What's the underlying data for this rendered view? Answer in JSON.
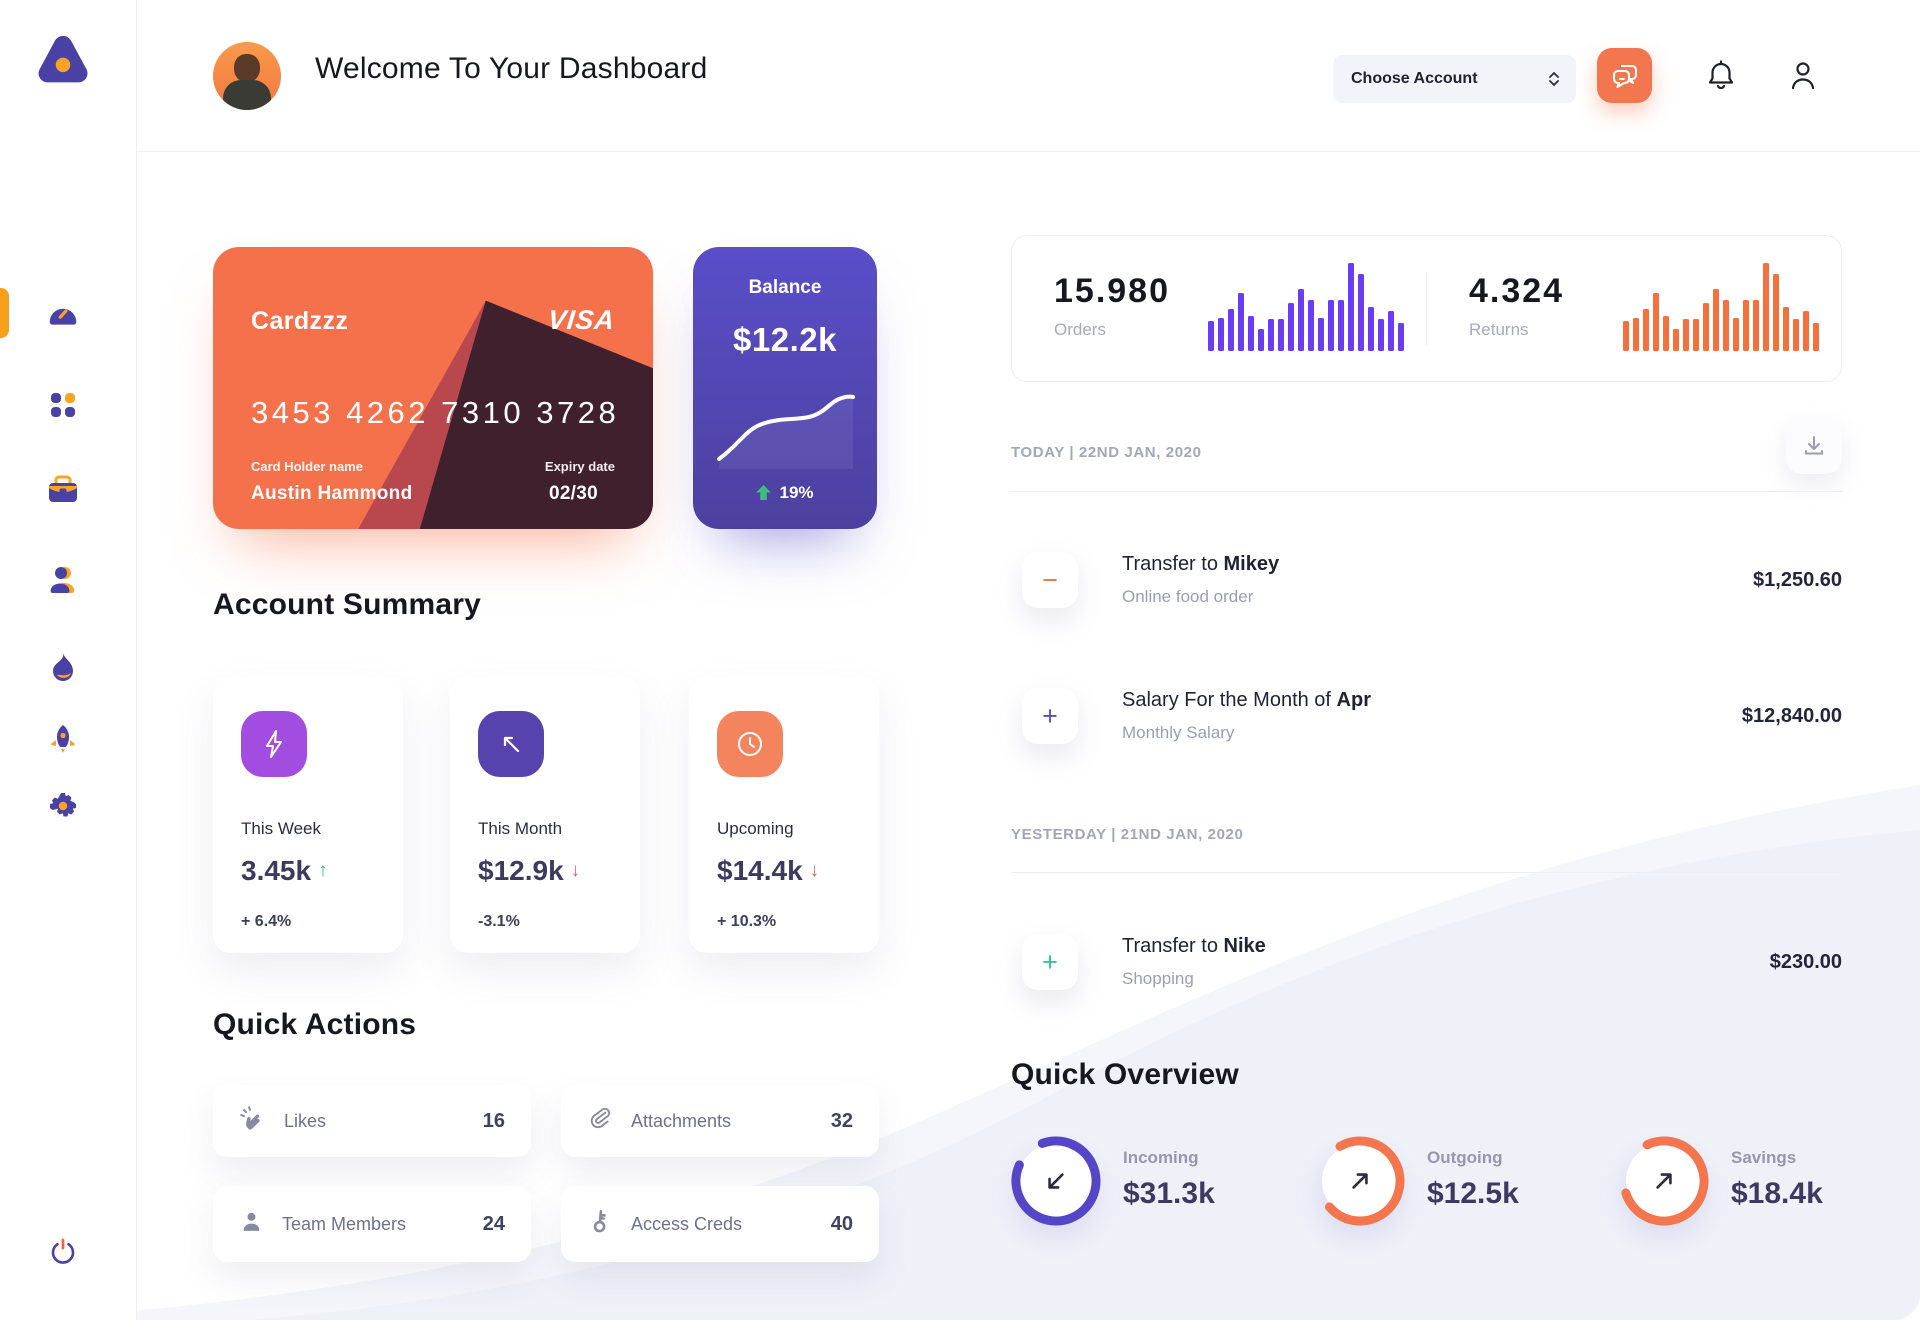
{
  "window": {
    "title": "Welcome To Your Dashboard"
  },
  "header": {
    "account_select_label": "Choose Account",
    "icons": {
      "chat": "chat-bubbles-icon",
      "notifications": "bell-icon",
      "profile": "user-icon"
    }
  },
  "sidebar": {
    "items": [
      {
        "id": "dashboard",
        "icon": "speedometer-icon",
        "active": true
      },
      {
        "id": "apps",
        "icon": "grid-icon",
        "active": false
      },
      {
        "id": "work",
        "icon": "briefcase-icon",
        "active": false
      },
      {
        "id": "users",
        "icon": "person-icon",
        "active": false
      },
      {
        "id": "trending",
        "icon": "flame-icon",
        "active": false
      },
      {
        "id": "boost",
        "icon": "rocket-icon",
        "active": false
      },
      {
        "id": "settings",
        "icon": "gear-icon",
        "active": false
      },
      {
        "id": "logout",
        "icon": "power-icon",
        "active": false
      }
    ]
  },
  "credit_card": {
    "name": "Cardzzz",
    "brand": "VISA",
    "number": "3453 4262 7310 3728",
    "holder_label": "Card Holder name",
    "holder_name": "Austin Hammond",
    "expiry_label": "Expiry date",
    "expiry": "02/30"
  },
  "balance_card": {
    "label": "Balance",
    "value": "$12.2k",
    "trend": "19%",
    "trend_direction": "up"
  },
  "stats": {
    "orders": {
      "value": "15.980",
      "label": "Orders"
    },
    "returns": {
      "value": "4.324",
      "label": "Returns"
    }
  },
  "chart_data": [
    {
      "type": "bar",
      "name": "orders-mini-bars",
      "color": "#6B3CF5",
      "values": [
        34,
        38,
        48,
        66,
        40,
        25,
        36,
        36,
        54,
        70,
        58,
        38,
        58,
        58,
        100,
        88,
        50,
        36,
        46,
        32
      ],
      "title": "Orders activity",
      "xlabel": "",
      "ylabel": "",
      "ylim": [
        0,
        100
      ]
    },
    {
      "type": "bar",
      "name": "returns-mini-bars",
      "color": "#F4703D",
      "values": [
        34,
        38,
        48,
        66,
        40,
        25,
        36,
        36,
        54,
        70,
        58,
        38,
        58,
        58,
        100,
        88,
        50,
        36,
        46,
        32
      ],
      "title": "Returns activity",
      "xlabel": "",
      "ylabel": "",
      "ylim": [
        0,
        100
      ]
    },
    {
      "type": "line",
      "name": "balance-trend",
      "points_pct": [
        [
          4,
          88
        ],
        [
          20,
          66
        ],
        [
          36,
          52
        ],
        [
          52,
          48
        ],
        [
          68,
          47
        ],
        [
          80,
          44
        ],
        [
          90,
          30
        ],
        [
          96,
          24
        ]
      ],
      "title": "Balance trend (up 19%)"
    },
    {
      "type": "donut",
      "name": "quick-overview-rings",
      "items": [
        {
          "label": "Incoming",
          "value_k": 31.3,
          "pct": 87
        },
        {
          "label": "Outgoing",
          "value_k": 12.5,
          "pct": 72
        },
        {
          "label": "Savings",
          "value_k": 18.4,
          "pct": 77
        }
      ]
    }
  ],
  "account_summary": {
    "title": "Account Summary",
    "cards": [
      {
        "icon": "lightning-icon",
        "icon_bg": "#A24CE0",
        "label": "This Week",
        "value": "3.45k",
        "arrow": "↑",
        "arrow_color": "#2EB873",
        "delta": "+ 6.4%"
      },
      {
        "icon": "arrow-up-left-icon",
        "icon_bg": "#5742AE",
        "label": "This Month",
        "value": "$12.9k",
        "arrow": "↓",
        "arrow_color": "#E5606A",
        "delta": "-3.1%"
      },
      {
        "icon": "clock-icon",
        "icon_bg": "#F4845D",
        "label": "Upcoming",
        "value": "$14.4k",
        "arrow": "↓",
        "arrow_color": "#E5606A",
        "delta": "+ 10.3%"
      }
    ]
  },
  "quick_actions": {
    "title": "Quick Actions",
    "items": [
      {
        "icon": "clap-icon",
        "label": "Likes",
        "count": "16"
      },
      {
        "icon": "paperclip-icon",
        "label": "Attachments",
        "count": "32"
      },
      {
        "icon": "member-icon",
        "label": "Team Members",
        "count": "24"
      },
      {
        "icon": "key-icon",
        "label": "Access Creds",
        "count": "40"
      }
    ]
  },
  "transactions": {
    "groups": [
      {
        "date": "TODAY | 22ND JAN, 2020",
        "rows": [
          {
            "sign": "−",
            "sign_color": "#F0774A",
            "title_prefix": "Transfer to ",
            "title_bold": "Mikey",
            "subtitle": "Online food order",
            "amount": "$1,250.60"
          },
          {
            "sign": "+",
            "sign_color": "#5B4BC8",
            "title_prefix": "Salary For the Month of ",
            "title_bold": "Apr",
            "subtitle": "Monthly Salary",
            "amount": "$12,840.00"
          }
        ]
      },
      {
        "date": "YESTERDAY | 21ND JAN, 2020",
        "rows": [
          {
            "sign": "+",
            "sign_color": "#2FC59B",
            "title_prefix": "Transfer to ",
            "title_bold": "Nike",
            "subtitle": "Shopping",
            "amount": "$230.00"
          }
        ]
      }
    ]
  },
  "quick_overview": {
    "title": "Quick Overview",
    "items": [
      {
        "label": "Incoming",
        "value": "$31.3k",
        "pct": 87,
        "rotate": -110,
        "color": "#5546C8",
        "arrow": "down-left"
      },
      {
        "label": "Outgoing",
        "value": "$12.5k",
        "pct": 72,
        "rotate": -120,
        "color": "#F4764E",
        "arrow": "up-right"
      },
      {
        "label": "Savings",
        "value": "$18.4k",
        "pct": 77,
        "rotate": -115,
        "color": "#F4764E",
        "arrow": "up-right"
      }
    ]
  },
  "colors": {
    "accent_orange": "#F4764E",
    "accent_purple": "#5546C8",
    "bars_purple": "#6B3CF5",
    "bars_orange": "#F4703D",
    "sidebar_indigo": "#4A41A5",
    "sidebar_gold": "#F9A01B",
    "positive_green": "#2EB873",
    "negative_red": "#E5606A",
    "text_dark": "#17181F",
    "text_gray": "#A3A6B7"
  }
}
